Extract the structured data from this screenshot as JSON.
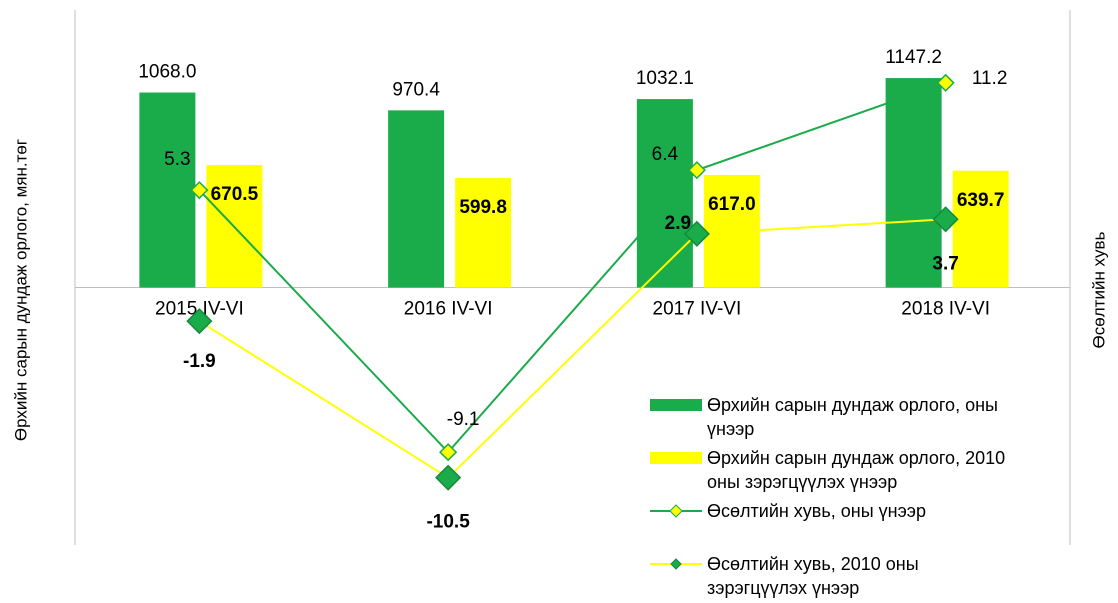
{
  "chart_data": {
    "type": "bar_line",
    "y_axis_label": "Өрхийн сарын дундаж орлого, мян.төг",
    "y2_axis_label": "Өсөлтийн хувь",
    "categories": [
      "2015 IV-VI",
      "2016 IV-VI",
      "2017 IV-VI",
      "2018 IV-VI"
    ],
    "ylim": [
      -1410,
      1520
    ],
    "y2lim": [
      -14.2,
      15.2
    ],
    "series": [
      {
        "name": "Өрхийн сарын дундаж орлого, оны үнээр",
        "type": "bar",
        "color": "#1aab4b",
        "values": [
          1068.0,
          970.4,
          1032.1,
          1147.2
        ],
        "value_labels": [
          "1068.0",
          "970.4",
          "1032.1",
          "1147.2"
        ]
      },
      {
        "name": "Өрхийн сарын дундаж орлого, 2010 оны зэрэгцүүлэх үнээр",
        "type": "bar",
        "color": "#ffff00",
        "values": [
          670.5,
          599.8,
          617.0,
          639.7
        ],
        "value_labels": [
          "670.5",
          "599.8",
          "617.0",
          "639.7"
        ]
      },
      {
        "name": "Өсөлтийн хувь, оны үнээр",
        "type": "line",
        "axis": "y2",
        "color": "#1aab4b",
        "marker_color": "#ffff00",
        "values": [
          5.3,
          -9.1,
          6.4,
          11.2
        ]
      },
      {
        "name": "Өсөлтийн хувь, 2010 оны зэрэгцүүлэх үнээр",
        "type": "line",
        "axis": "y2",
        "color": "#ffff00",
        "marker_color": "#1aab4b",
        "values": [
          -1.9,
          -10.5,
          2.9,
          3.7
        ]
      }
    ]
  }
}
